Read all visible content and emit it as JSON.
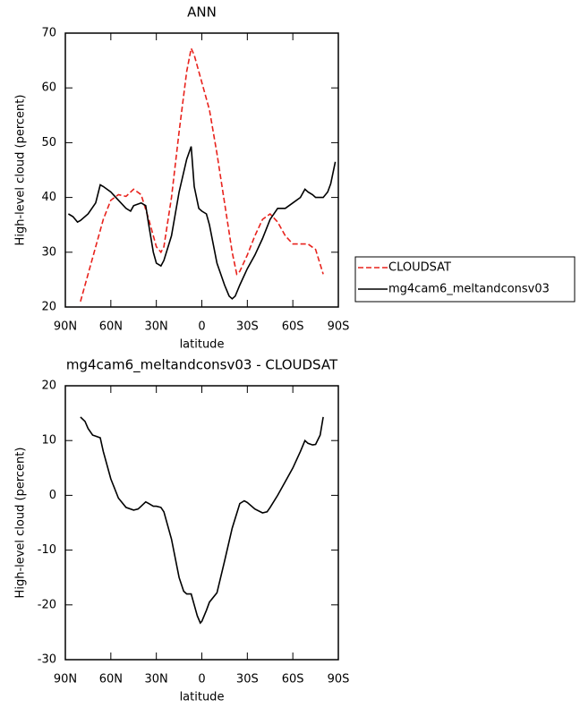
{
  "chart_data": [
    {
      "type": "line",
      "title": "ANN",
      "xlabel": "latitude",
      "ylabel": "High-level cloud (percent)",
      "xlim": [
        90,
        -90
      ],
      "ylim": [
        20,
        70
      ],
      "xticks": [
        {
          "value": 90,
          "label": "90N"
        },
        {
          "value": 60,
          "label": "60N"
        },
        {
          "value": 30,
          "label": "30N"
        },
        0,
        {
          "value": -30,
          "label": "30S"
        },
        {
          "value": -60,
          "label": "60S"
        },
        {
          "value": -90,
          "label": "90S"
        }
      ],
      "yticks": [
        20,
        30,
        40,
        50,
        60,
        70
      ],
      "legend": "outside-right",
      "series": [
        {
          "name": "CLOUDSAT",
          "color": "#e8221c",
          "dash": true,
          "x": [
            80,
            75,
            70,
            65,
            60,
            55,
            50,
            45,
            40,
            35,
            30,
            27,
            25,
            20,
            15,
            10,
            7,
            5,
            0,
            -5,
            -10,
            -15,
            -20,
            -23,
            -25,
            -30,
            -35,
            -40,
            -45,
            -50,
            -55,
            -60,
            -65,
            -70,
            -75,
            -80
          ],
          "values": [
            21,
            26,
            31,
            36,
            39.5,
            40.5,
            40.2,
            41.5,
            40.5,
            36,
            31,
            30,
            31,
            40,
            52,
            63,
            67.2,
            66,
            61,
            56,
            48,
            39,
            30,
            26,
            26.5,
            29.5,
            33,
            36,
            37,
            35.5,
            33,
            31.5,
            31.5,
            31.5,
            30.5,
            26
          ]
        },
        {
          "name": "mg4cam6_meltandconsv03",
          "color": "#000000",
          "dash": false,
          "x": [
            88,
            85,
            82,
            80,
            75,
            70,
            67,
            65,
            60,
            55,
            50,
            47,
            45,
            40,
            37,
            35,
            32,
            30,
            27,
            25,
            20,
            15,
            10,
            7,
            5,
            2,
            0,
            -3,
            -5,
            -10,
            -15,
            -18,
            -20,
            -22,
            -25,
            -30,
            -35,
            -40,
            -45,
            -50,
            -55,
            -60,
            -65,
            -68,
            -70,
            -73,
            -75,
            -80,
            -83,
            -85,
            -88
          ],
          "values": [
            37,
            36.5,
            35.5,
            35.8,
            37,
            39,
            42.3,
            42,
            41,
            39.5,
            38,
            37.5,
            38.5,
            39,
            38.5,
            35,
            30,
            28,
            27.5,
            28.5,
            33,
            41,
            47,
            49.3,
            42,
            38,
            37.5,
            37,
            35,
            28,
            24,
            22,
            21.5,
            22,
            24,
            27,
            29.5,
            32.5,
            36,
            38,
            38,
            39,
            40,
            41.5,
            41,
            40.5,
            40,
            40,
            41,
            42.5,
            46.5
          ]
        }
      ]
    },
    {
      "type": "line",
      "title": "mg4cam6_meltandconsv03 - CLOUDSAT",
      "xlabel": "latitude",
      "ylabel": "High-level cloud (percent)",
      "xlim": [
        90,
        -90
      ],
      "ylim": [
        -30,
        20
      ],
      "xticks": [
        {
          "value": 90,
          "label": "90N"
        },
        {
          "value": 60,
          "label": "60N"
        },
        {
          "value": 30,
          "label": "30N"
        },
        0,
        {
          "value": -30,
          "label": "30S"
        },
        {
          "value": -60,
          "label": "60S"
        },
        {
          "value": -90,
          "label": "90S"
        }
      ],
      "yticks": [
        -30,
        -20,
        -10,
        0,
        10,
        20
      ],
      "series": [
        {
          "name": "mg4cam6_meltandconsv03 - CLOUDSAT",
          "color": "#000000",
          "dash": false,
          "x": [
            80,
            77,
            75,
            72,
            70,
            67,
            65,
            60,
            55,
            50,
            45,
            42,
            40,
            37,
            35,
            32,
            30,
            27,
            25,
            20,
            15,
            12,
            10,
            7,
            5,
            3,
            1,
            0,
            -3,
            -5,
            -10,
            -15,
            -20,
            -25,
            -28,
            -30,
            -35,
            -40,
            -43,
            -45,
            -50,
            -55,
            -60,
            -65,
            -68,
            -70,
            -73,
            -75,
            -78,
            -80
          ],
          "values": [
            14.3,
            13.5,
            12.2,
            11,
            10.8,
            10.5,
            8,
            3,
            -0.5,
            -2.2,
            -2.7,
            -2.5,
            -2,
            -1.2,
            -1.5,
            -2,
            -2,
            -2.2,
            -3,
            -8,
            -15,
            -17.5,
            -18,
            -18,
            -20,
            -22,
            -23.3,
            -23,
            -21,
            -19.5,
            -17.8,
            -12,
            -6,
            -1.5,
            -1,
            -1.3,
            -2.5,
            -3.2,
            -3,
            -2.2,
            0,
            2.5,
            5,
            8,
            10,
            9.5,
            9.2,
            9.3,
            11,
            14.3
          ]
        }
      ]
    }
  ]
}
